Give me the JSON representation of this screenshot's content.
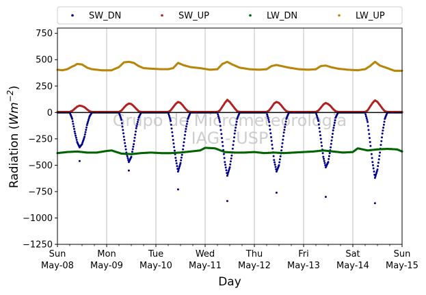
{
  "chart_data": {
    "type": "scatter",
    "ylabel_prefix": "Radiation (",
    "ylabel_unit": "Wm",
    "ylabel_exp": "−2",
    "ylabel_suffix": ")",
    "xlabel": "Day",
    "ylim": [
      -1250,
      800
    ],
    "yticks": [
      750,
      500,
      250,
      0,
      -250,
      -500,
      -750,
      -1000,
      -1250
    ],
    "ytick_labels": [
      "750",
      "500",
      "250",
      "0",
      "−250",
      "−500",
      "−750",
      "−1000",
      "−1250"
    ],
    "xlim": [
      0,
      7
    ],
    "xticks": [
      {
        "day": 0,
        "weekday": "Sun",
        "date": "May-08"
      },
      {
        "day": 1,
        "weekday": "Mon",
        "date": "May-09"
      },
      {
        "day": 2,
        "weekday": "Tue",
        "date": "May-10"
      },
      {
        "day": 3,
        "weekday": "Wed",
        "date": "May-11"
      },
      {
        "day": 4,
        "weekday": "Thu",
        "date": "May-12"
      },
      {
        "day": 5,
        "weekday": "Fri",
        "date": "May-13"
      },
      {
        "day": 6,
        "weekday": "Sat",
        "date": "May-14"
      },
      {
        "day": 7,
        "weekday": "Sun",
        "date": "May-15"
      }
    ],
    "grid": "vertical-days",
    "legend_position": "top",
    "watermark_line1": "Grupo de Micrometeorologia",
    "watermark_line2": "IAG - USP",
    "series": [
      {
        "name": "SW_DN",
        "color": "#00008b",
        "daily_min": [
          -460,
          -550,
          -730,
          -840,
          -760,
          -800,
          -860
        ],
        "points": [
          [
            0,
            0
          ],
          [
            0.25,
            0
          ],
          [
            0.3,
            -60
          ],
          [
            0.35,
            -180
          ],
          [
            0.4,
            -280
          ],
          [
            0.45,
            -330
          ],
          [
            0.5,
            -300
          ],
          [
            0.55,
            -230
          ],
          [
            0.6,
            -120
          ],
          [
            0.65,
            -40
          ],
          [
            0.7,
            0
          ],
          [
            1.25,
            0
          ],
          [
            1.3,
            -70
          ],
          [
            1.35,
            -230
          ],
          [
            1.4,
            -380
          ],
          [
            1.45,
            -470
          ],
          [
            1.5,
            -420
          ],
          [
            1.55,
            -300
          ],
          [
            1.6,
            -150
          ],
          [
            1.65,
            -50
          ],
          [
            1.7,
            0
          ],
          [
            2.25,
            0
          ],
          [
            2.3,
            -80
          ],
          [
            2.35,
            -260
          ],
          [
            2.4,
            -430
          ],
          [
            2.45,
            -560
          ],
          [
            2.5,
            -480
          ],
          [
            2.55,
            -350
          ],
          [
            2.6,
            -180
          ],
          [
            2.65,
            -60
          ],
          [
            2.7,
            0
          ],
          [
            3.25,
            0
          ],
          [
            3.3,
            -90
          ],
          [
            3.35,
            -280
          ],
          [
            3.4,
            -470
          ],
          [
            3.45,
            -600
          ],
          [
            3.5,
            -520
          ],
          [
            3.55,
            -380
          ],
          [
            3.6,
            -200
          ],
          [
            3.65,
            -60
          ],
          [
            3.7,
            0
          ],
          [
            4.25,
            0
          ],
          [
            4.3,
            -90
          ],
          [
            4.35,
            -270
          ],
          [
            4.4,
            -450
          ],
          [
            4.45,
            -560
          ],
          [
            4.5,
            -500
          ],
          [
            4.55,
            -360
          ],
          [
            4.6,
            -190
          ],
          [
            4.65,
            -60
          ],
          [
            4.7,
            0
          ],
          [
            5.25,
            0
          ],
          [
            5.3,
            -80
          ],
          [
            5.35,
            -250
          ],
          [
            5.4,
            -420
          ],
          [
            5.45,
            -520
          ],
          [
            5.5,
            -470
          ],
          [
            5.55,
            -330
          ],
          [
            5.6,
            -170
          ],
          [
            5.65,
            -50
          ],
          [
            5.7,
            0
          ],
          [
            6.25,
            0
          ],
          [
            6.3,
            -90
          ],
          [
            6.35,
            -280
          ],
          [
            6.4,
            -470
          ],
          [
            6.45,
            -620
          ],
          [
            6.5,
            -540
          ],
          [
            6.55,
            -380
          ],
          [
            6.6,
            -200
          ],
          [
            6.65,
            -60
          ],
          [
            6.7,
            0
          ],
          [
            7,
            0
          ]
        ]
      },
      {
        "name": "SW_UP",
        "color": "#b22222",
        "points": [
          [
            0,
            5
          ],
          [
            0.25,
            5
          ],
          [
            0.3,
            15
          ],
          [
            0.35,
            35
          ],
          [
            0.4,
            55
          ],
          [
            0.45,
            65
          ],
          [
            0.5,
            60
          ],
          [
            0.55,
            50
          ],
          [
            0.6,
            30
          ],
          [
            0.65,
            12
          ],
          [
            0.7,
            5
          ],
          [
            1.25,
            5
          ],
          [
            1.3,
            18
          ],
          [
            1.35,
            45
          ],
          [
            1.4,
            70
          ],
          [
            1.45,
            85
          ],
          [
            1.5,
            80
          ],
          [
            1.55,
            60
          ],
          [
            1.6,
            35
          ],
          [
            1.65,
            12
          ],
          [
            1.7,
            5
          ],
          [
            2.25,
            5
          ],
          [
            2.3,
            20
          ],
          [
            2.35,
            50
          ],
          [
            2.4,
            80
          ],
          [
            2.45,
            100
          ],
          [
            2.5,
            90
          ],
          [
            2.55,
            65
          ],
          [
            2.6,
            35
          ],
          [
            2.65,
            12
          ],
          [
            2.7,
            5
          ],
          [
            3.25,
            5
          ],
          [
            3.3,
            20
          ],
          [
            3.35,
            55
          ],
          [
            3.4,
            90
          ],
          [
            3.45,
            120
          ],
          [
            3.5,
            100
          ],
          [
            3.55,
            70
          ],
          [
            3.6,
            40
          ],
          [
            3.65,
            12
          ],
          [
            3.7,
            5
          ],
          [
            4.25,
            5
          ],
          [
            4.3,
            20
          ],
          [
            4.35,
            50
          ],
          [
            4.4,
            85
          ],
          [
            4.45,
            100
          ],
          [
            4.5,
            90
          ],
          [
            4.55,
            65
          ],
          [
            4.6,
            35
          ],
          [
            4.65,
            12
          ],
          [
            4.7,
            5
          ],
          [
            5.25,
            5
          ],
          [
            5.3,
            18
          ],
          [
            5.35,
            45
          ],
          [
            5.4,
            75
          ],
          [
            5.45,
            90
          ],
          [
            5.5,
            80
          ],
          [
            5.55,
            60
          ],
          [
            5.6,
            32
          ],
          [
            5.65,
            12
          ],
          [
            5.7,
            5
          ],
          [
            6.25,
            5
          ],
          [
            6.3,
            20
          ],
          [
            6.35,
            55
          ],
          [
            6.4,
            90
          ],
          [
            6.45,
            115
          ],
          [
            6.5,
            100
          ],
          [
            6.55,
            70
          ],
          [
            6.6,
            38
          ],
          [
            6.65,
            12
          ],
          [
            6.7,
            5
          ],
          [
            7,
            5
          ]
        ]
      },
      {
        "name": "LW_DN",
        "color": "#006400",
        "points": [
          [
            0,
            -385
          ],
          [
            0.2,
            -375
          ],
          [
            0.4,
            -370
          ],
          [
            0.6,
            -380
          ],
          [
            0.8,
            -380
          ],
          [
            1.0,
            -365
          ],
          [
            1.1,
            -360
          ],
          [
            1.3,
            -390
          ],
          [
            1.5,
            -395
          ],
          [
            1.7,
            -385
          ],
          [
            1.9,
            -380
          ],
          [
            2.1,
            -385
          ],
          [
            2.3,
            -385
          ],
          [
            2.5,
            -380
          ],
          [
            2.7,
            -370
          ],
          [
            2.9,
            -360
          ],
          [
            3.0,
            -335
          ],
          [
            3.2,
            -340
          ],
          [
            3.4,
            -375
          ],
          [
            3.6,
            -380
          ],
          [
            3.8,
            -380
          ],
          [
            4.0,
            -375
          ],
          [
            4.2,
            -385
          ],
          [
            4.4,
            -380
          ],
          [
            4.6,
            -385
          ],
          [
            4.8,
            -380
          ],
          [
            5.0,
            -375
          ],
          [
            5.2,
            -370
          ],
          [
            5.4,
            -360
          ],
          [
            5.6,
            -370
          ],
          [
            5.8,
            -380
          ],
          [
            6.0,
            -375
          ],
          [
            6.1,
            -340
          ],
          [
            6.3,
            -360
          ],
          [
            6.5,
            -350
          ],
          [
            6.7,
            -345
          ],
          [
            6.9,
            -350
          ],
          [
            7.0,
            -370
          ]
        ]
      },
      {
        "name": "LW_UP",
        "color": "#b8860b",
        "points": [
          [
            0,
            405
          ],
          [
            0.1,
            400
          ],
          [
            0.2,
            410
          ],
          [
            0.3,
            435
          ],
          [
            0.35,
            445
          ],
          [
            0.4,
            460
          ],
          [
            0.5,
            455
          ],
          [
            0.6,
            425
          ],
          [
            0.7,
            410
          ],
          [
            0.8,
            405
          ],
          [
            0.9,
            400
          ],
          [
            1.0,
            400
          ],
          [
            1.1,
            400
          ],
          [
            1.25,
            430
          ],
          [
            1.35,
            475
          ],
          [
            1.45,
            480
          ],
          [
            1.55,
            470
          ],
          [
            1.65,
            440
          ],
          [
            1.75,
            420
          ],
          [
            1.9,
            415
          ],
          [
            2.1,
            410
          ],
          [
            2.25,
            410
          ],
          [
            2.35,
            420
          ],
          [
            2.45,
            470
          ],
          [
            2.55,
            450
          ],
          [
            2.7,
            430
          ],
          [
            2.9,
            420
          ],
          [
            3.1,
            405
          ],
          [
            3.25,
            410
          ],
          [
            3.35,
            460
          ],
          [
            3.45,
            480
          ],
          [
            3.55,
            455
          ],
          [
            3.7,
            425
          ],
          [
            3.9,
            410
          ],
          [
            4.1,
            405
          ],
          [
            4.25,
            410
          ],
          [
            4.35,
            440
          ],
          [
            4.45,
            450
          ],
          [
            4.55,
            440
          ],
          [
            4.7,
            425
          ],
          [
            4.9,
            410
          ],
          [
            5.1,
            405
          ],
          [
            5.25,
            410
          ],
          [
            5.35,
            440
          ],
          [
            5.45,
            445
          ],
          [
            5.55,
            430
          ],
          [
            5.7,
            415
          ],
          [
            5.9,
            405
          ],
          [
            6.1,
            400
          ],
          [
            6.25,
            410
          ],
          [
            6.35,
            440
          ],
          [
            6.45,
            480
          ],
          [
            6.55,
            445
          ],
          [
            6.7,
            420
          ],
          [
            6.85,
            395
          ],
          [
            7.0,
            395
          ]
        ]
      }
    ]
  }
}
